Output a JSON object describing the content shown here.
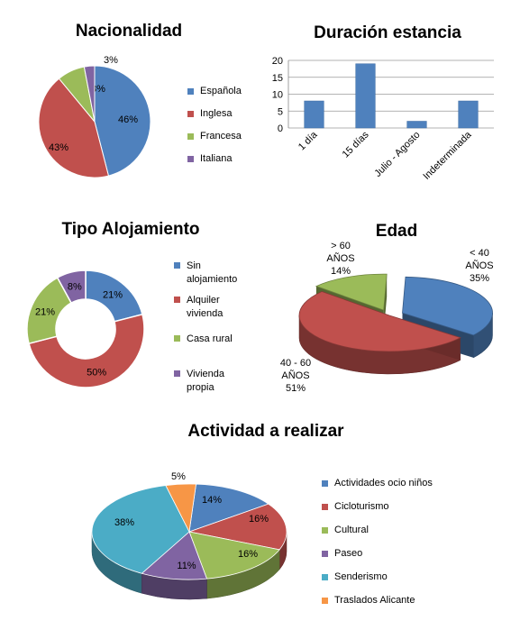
{
  "chart_data": [
    {
      "id": "nacionalidad",
      "type": "pie",
      "title": "Nacionalidad",
      "categories": [
        "Española",
        "Inglesa",
        "Francesa",
        "Italiana"
      ],
      "values": [
        46,
        43,
        8,
        3
      ],
      "labels": [
        "46%",
        "43%",
        "8%",
        "3%"
      ],
      "colors": [
        "#4F81BD",
        "#C0504D",
        "#9BBB59",
        "#8064A2"
      ],
      "legend": "right"
    },
    {
      "id": "duracion",
      "type": "bar",
      "title": "Duración estancia",
      "categories": [
        "1 día",
        "15 días",
        "Julio - Agosto",
        "Indeterminada"
      ],
      "values": [
        8,
        19,
        2,
        8
      ],
      "ylim": [
        0,
        20
      ],
      "yticks": [
        "0",
        "5",
        "10",
        "15",
        "20"
      ],
      "grid": true,
      "color": "#4F81BD"
    },
    {
      "id": "alojamiento",
      "type": "pie",
      "subtype": "doughnut",
      "title": "Tipo Alojamiento",
      "categories": [
        "Sin alojamiento",
        "Alquiler vivienda",
        "Casa rural",
        "Vivienda propia"
      ],
      "values": [
        21,
        50,
        21,
        8
      ],
      "labels": [
        "21%",
        "50%",
        "21%",
        "8%"
      ],
      "colors": [
        "#4F81BD",
        "#C0504D",
        "#9BBB59",
        "#8064A2"
      ],
      "legend": "right"
    },
    {
      "id": "edad",
      "type": "pie",
      "subtype": "3d-exploded",
      "title": "Edad",
      "categories": [
        "< 40 AÑOS",
        "40 - 60 AÑOS",
        "> 60 AÑOS"
      ],
      "values": [
        35,
        51,
        14
      ],
      "labels": [
        [
          "< 40",
          "AÑOS",
          "35%"
        ],
        [
          "40 - 60",
          "AÑOS",
          "51%"
        ],
        [
          "> 60",
          "AÑOS",
          "14%"
        ]
      ],
      "colors": [
        "#4F81BD",
        "#C0504D",
        "#9BBB59"
      ]
    },
    {
      "id": "actividad",
      "type": "pie",
      "subtype": "3d",
      "title": "Actividad a realizar",
      "categories": [
        "Actividades ocio niños",
        "Cicloturismo",
        "Cultural",
        "Paseo",
        "Senderismo",
        "Traslados Alicante"
      ],
      "values": [
        14,
        16,
        16,
        11,
        38,
        5
      ],
      "labels": [
        "14%",
        "16%",
        "16%",
        "11%",
        "38%",
        "5%"
      ],
      "colors": [
        "#4F81BD",
        "#C0504D",
        "#9BBB59",
        "#8064A2",
        "#4BACC6",
        "#F79646"
      ],
      "legend": "right"
    }
  ]
}
